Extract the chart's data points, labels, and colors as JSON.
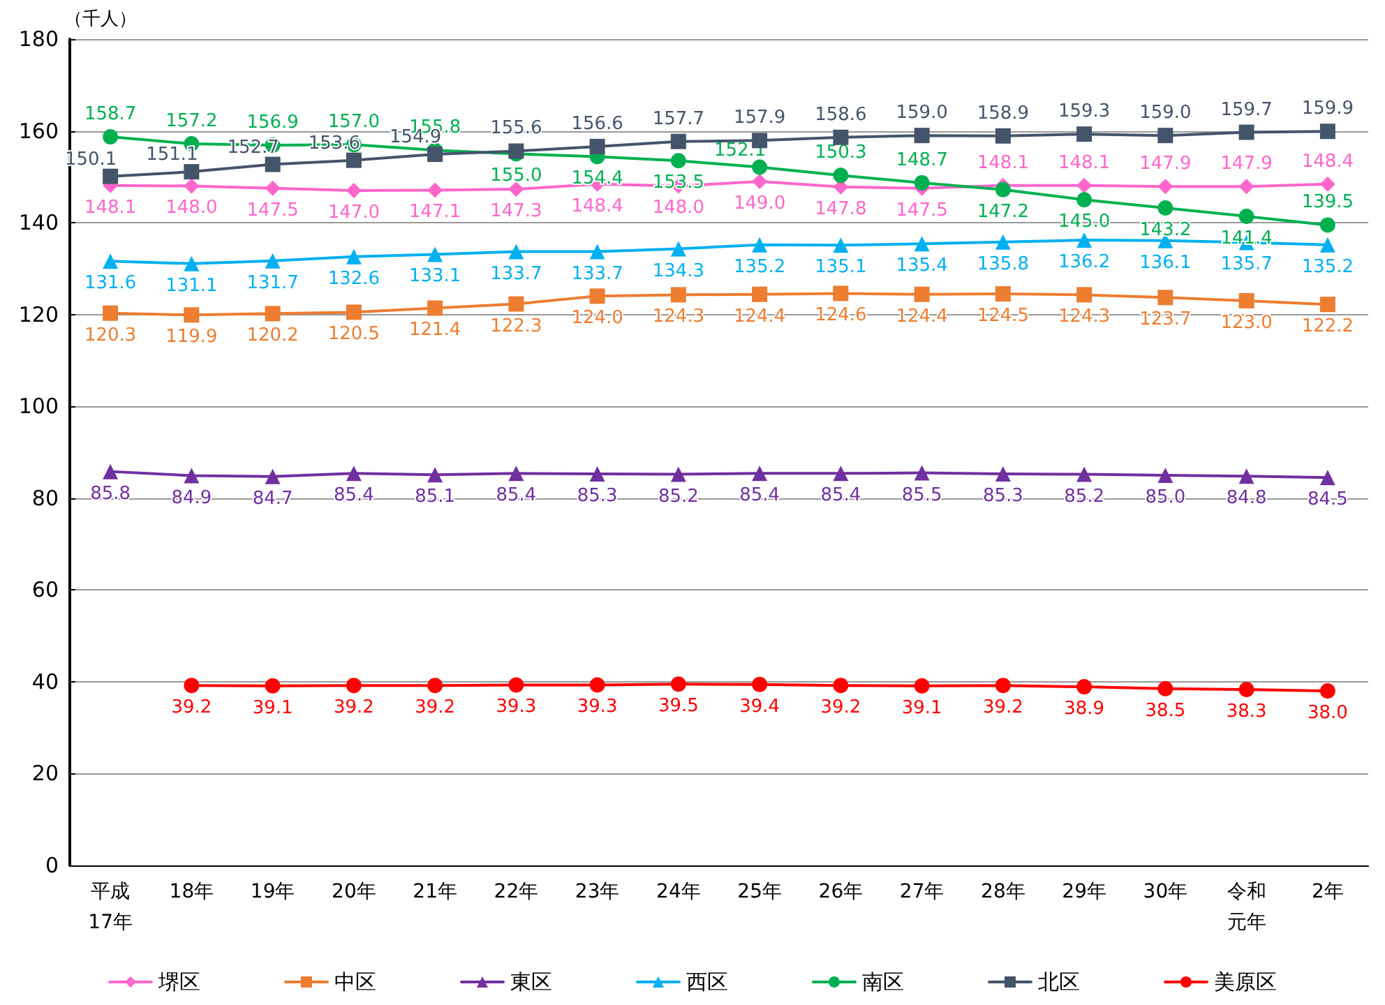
{
  "chart_data": {
    "type": "line",
    "ylabel": "（千人）",
    "categories": [
      "平成17年",
      "18年",
      "19年",
      "20年",
      "21年",
      "22年",
      "23年",
      "24年",
      "25年",
      "26年",
      "27年",
      "28年",
      "29年",
      "30年",
      "令和元年",
      "2年"
    ],
    "series": [
      {
        "name": "堺区",
        "color": "#ff66cc",
        "marker": "diamond",
        "values": [
          148.1,
          148.0,
          147.5,
          147.0,
          147.1,
          147.3,
          148.4,
          148.0,
          149.0,
          147.8,
          147.5,
          148.1,
          148.1,
          147.9,
          147.9,
          148.4
        ],
        "value_labels": [
          "148.1",
          "148.0",
          "147.5",
          "147.0",
          "147.1",
          "147.3",
          "148.4",
          "148.0",
          "149.0",
          "147.8",
          "147.5",
          "148.1",
          "148.1",
          "147.9",
          "147.9",
          "148.4"
        ]
      },
      {
        "name": "中区",
        "color": "#ed7d31",
        "marker": "square",
        "values": [
          120.3,
          119.9,
          120.2,
          120.5,
          121.4,
          122.3,
          124.0,
          124.3,
          124.4,
          124.6,
          124.4,
          124.5,
          124.3,
          123.7,
          123.0,
          122.2
        ],
        "value_labels": [
          "120.3",
          "119.9",
          "120.2",
          "120.5",
          "121.4",
          "122.3",
          "124.0",
          "124.3",
          "124.4",
          "124.6",
          "124.4",
          "124.5",
          "124.3",
          "123.7",
          "123.0",
          "122.2"
        ]
      },
      {
        "name": "東区",
        "color": "#7030a0",
        "marker": "triangle",
        "values": [
          85.8,
          84.9,
          84.7,
          85.4,
          85.1,
          85.4,
          85.3,
          85.2,
          85.4,
          85.4,
          85.5,
          85.3,
          85.2,
          85.0,
          84.8,
          84.5
        ],
        "value_labels": [
          "85.8",
          "84.9",
          "84.7",
          "85.4",
          "85.1",
          "85.4",
          "85.3",
          "85.2",
          "85.4",
          "85.4",
          "85.5",
          "85.3",
          "85.2",
          "85.0",
          "84.8",
          "84.5"
        ]
      },
      {
        "name": "西区",
        "color": "#00b0f0",
        "marker": "triangle",
        "values": [
          131.6,
          131.1,
          131.7,
          132.6,
          133.1,
          133.7,
          133.7,
          134.3,
          135.2,
          135.1,
          135.4,
          135.8,
          136.2,
          136.1,
          135.7,
          135.2
        ],
        "value_labels": [
          "131.6",
          "131.1",
          "131.7",
          "132.6",
          "133.1",
          "133.7",
          "133.7",
          "134.3",
          "135.2",
          "135.1",
          "135.4",
          "135.8",
          "136.2",
          "136.1",
          "135.7",
          "135.2"
        ]
      },
      {
        "name": "南区",
        "color": "#00b050",
        "marker": "circle",
        "values": [
          158.7,
          157.2,
          156.9,
          157.0,
          155.8,
          155.0,
          154.4,
          153.5,
          152.1,
          150.3,
          148.7,
          147.2,
          145.0,
          143.2,
          141.4,
          139.5
        ],
        "value_labels": [
          "158.7",
          "157.2",
          "156.9",
          "157.0",
          "155.8",
          "155.0",
          "154.4",
          "153.5",
          "152.1",
          "150.3",
          "148.7",
          "147.2",
          "145.0",
          "143.2",
          "141.4",
          "139.5"
        ]
      },
      {
        "name": "北区",
        "color": "#44546a",
        "marker": "square",
        "values": [
          150.1,
          151.1,
          152.7,
          153.6,
          154.9,
          155.6,
          156.6,
          157.7,
          157.9,
          158.6,
          159.0,
          158.9,
          159.3,
          159.0,
          159.7,
          159.9
        ],
        "value_labels": [
          "150.1",
          "151.1",
          "152.7",
          "153.6",
          "154.9",
          "155.6",
          "156.6",
          "157.7",
          "157.9",
          "158.6",
          "159.0",
          "158.9",
          "159.3",
          "159.0",
          "159.7",
          "159.9"
        ]
      },
      {
        "name": "美原区",
        "color": "#ff0000",
        "marker": "circle",
        "values": [
          null,
          39.2,
          39.1,
          39.2,
          39.2,
          39.3,
          39.3,
          39.5,
          39.4,
          39.2,
          39.1,
          39.2,
          38.9,
          38.5,
          38.3,
          38.0
        ],
        "value_labels": [
          null,
          "39.2",
          "39.1",
          "39.2",
          "39.2",
          "39.3",
          "39.3",
          "39.5",
          "39.4",
          "39.2",
          "39.1",
          "39.2",
          "38.9",
          "38.5",
          "38.3",
          "38.0"
        ]
      }
    ],
    "ylim": [
      0,
      180
    ],
    "yticks": [
      0,
      20,
      40,
      60,
      80,
      100,
      120,
      140,
      160,
      180
    ],
    "grid": "y",
    "legend": "bottom",
    "line_style": "solid"
  }
}
